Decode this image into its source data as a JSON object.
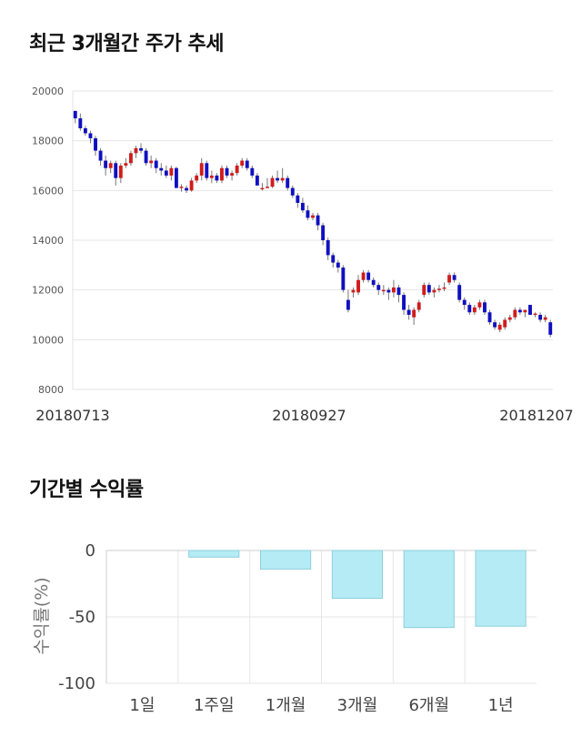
{
  "titles": {
    "price_trend": "최근 3개월간 주가 추세",
    "returns": "기간별 수익률"
  },
  "colors": {
    "up": "#d01c1c",
    "down": "#1010c0",
    "bar_fill": "#b5ebf5",
    "bar_stroke": "#8ccfdd",
    "grid": "#e6e6e6"
  },
  "chart_data": [
    {
      "type": "candlestick",
      "title": "최근 3개월간 주가 추세",
      "ylim": [
        8000,
        20000
      ],
      "yticks": [
        8000,
        10000,
        12000,
        14000,
        16000,
        18000,
        20000
      ],
      "xtick_labels": [
        "20180713",
        "20180927",
        "20181207"
      ],
      "grid": true,
      "ohlc": [
        [
          19200,
          19200,
          18700,
          18900
        ],
        [
          18900,
          19100,
          18400,
          18500
        ],
        [
          18500,
          18600,
          18200,
          18300
        ],
        [
          18300,
          18400,
          17900,
          18100
        ],
        [
          18100,
          18200,
          17400,
          17600
        ],
        [
          17600,
          17700,
          17000,
          17200
        ],
        [
          17200,
          17400,
          16600,
          16900
        ],
        [
          16900,
          17200,
          16700,
          17100
        ],
        [
          17100,
          17200,
          16200,
          16500
        ],
        [
          16500,
          17100,
          16300,
          17000
        ],
        [
          17000,
          17300,
          16900,
          17100
        ],
        [
          17100,
          17600,
          17000,
          17500
        ],
        [
          17500,
          17800,
          17300,
          17700
        ],
        [
          17700,
          17900,
          17500,
          17600
        ],
        [
          17600,
          17700,
          17000,
          17100
        ],
        [
          17100,
          17400,
          16900,
          17200
        ],
        [
          17200,
          17300,
          16700,
          16900
        ],
        [
          16900,
          17100,
          16600,
          16800
        ],
        [
          16800,
          17000,
          16500,
          16600
        ],
        [
          16600,
          17000,
          16400,
          16900
        ],
        [
          16900,
          16950,
          16100,
          16100
        ],
        [
          16100,
          16250,
          15950,
          16150
        ],
        [
          16100,
          16200,
          15900,
          16000
        ],
        [
          16000,
          16500,
          15950,
          16400
        ],
        [
          16400,
          16700,
          16300,
          16600
        ],
        [
          16600,
          17300,
          16400,
          17100
        ],
        [
          17100,
          17200,
          16400,
          16500
        ],
        [
          16500,
          16800,
          16300,
          16600
        ],
        [
          16600,
          16700,
          16300,
          16400
        ],
        [
          16400,
          17000,
          16300,
          16900
        ],
        [
          16900,
          17000,
          16500,
          16600
        ],
        [
          16600,
          16800,
          16400,
          16700
        ],
        [
          16700,
          17100,
          16600,
          17000
        ],
        [
          17000,
          17300,
          16900,
          17200
        ],
        [
          17200,
          17300,
          16800,
          16900
        ],
        [
          16900,
          17000,
          16500,
          16600
        ],
        [
          16600,
          16700,
          16200,
          16200
        ],
        [
          16100,
          16300,
          16000,
          16100
        ],
        [
          16100,
          16500,
          16100,
          16150
        ],
        [
          16150,
          16600,
          16100,
          16500
        ],
        [
          16500,
          16800,
          16300,
          16400
        ],
        [
          16400,
          16900,
          16300,
          16500
        ],
        [
          16500,
          16600,
          16000,
          16100
        ],
        [
          16100,
          16200,
          15700,
          15800
        ],
        [
          15800,
          15900,
          15300,
          15500
        ],
        [
          15500,
          15700,
          15100,
          15200
        ],
        [
          15200,
          15400,
          14800,
          14900
        ],
        [
          14900,
          15100,
          14800,
          15000
        ],
        [
          15000,
          15100,
          14400,
          14600
        ],
        [
          14600,
          14700,
          13800,
          14000
        ],
        [
          14000,
          14100,
          13200,
          13400
        ],
        [
          13400,
          13500,
          12900,
          13100
        ],
        [
          13100,
          13200,
          12700,
          12900
        ],
        [
          12900,
          13000,
          11900,
          12000
        ],
        [
          11600,
          12000,
          11100,
          11200
        ],
        [
          11900,
          12100,
          11700,
          12000
        ],
        [
          11900,
          12600,
          11800,
          12400
        ],
        [
          12400,
          12800,
          12300,
          12700
        ],
        [
          12700,
          12800,
          12300,
          12400
        ],
        [
          12400,
          12500,
          12100,
          12200
        ],
        [
          12200,
          12300,
          11800,
          12000
        ],
        [
          12000,
          12200,
          11800,
          12000
        ],
        [
          12000,
          12100,
          11600,
          11900
        ],
        [
          11900,
          12400,
          11700,
          12100
        ],
        [
          12100,
          12200,
          11500,
          11800
        ],
        [
          11800,
          11900,
          11000,
          11200
        ],
        [
          11200,
          11400,
          10800,
          11000
        ],
        [
          10900,
          11300,
          10600,
          11200
        ],
        [
          11200,
          11600,
          11100,
          11500
        ],
        [
          11800,
          12300,
          11700,
          12200
        ],
        [
          12200,
          12300,
          11800,
          11900
        ],
        [
          11900,
          12100,
          11700,
          12000
        ],
        [
          12000,
          12200,
          11900,
          12050
        ],
        [
          12050,
          12300,
          11950,
          12100
        ],
        [
          12300,
          12700,
          12200,
          12600
        ],
        [
          12600,
          12700,
          12300,
          12400
        ],
        [
          12200,
          12300,
          11500,
          11600
        ],
        [
          11600,
          11700,
          11200,
          11400
        ],
        [
          11400,
          11500,
          11000,
          11100
        ],
        [
          11100,
          11400,
          11000,
          11300
        ],
        [
          11300,
          11600,
          11200,
          11500
        ],
        [
          11500,
          11600,
          11000,
          11100
        ],
        [
          11100,
          11200,
          10600,
          10700
        ],
        [
          10700,
          10800,
          10400,
          10500
        ],
        [
          10400,
          10700,
          10300,
          10600
        ],
        [
          10500,
          10900,
          10400,
          10800
        ],
        [
          10800,
          11000,
          10700,
          10900
        ],
        [
          10900,
          11300,
          10800,
          11200
        ],
        [
          11200,
          11300,
          11000,
          11100
        ],
        [
          11100,
          11200,
          10900,
          11200
        ],
        [
          11400,
          11400,
          11000,
          11000
        ],
        [
          11000,
          11100,
          10900,
          11050
        ],
        [
          11000,
          11100,
          10700,
          10800
        ],
        [
          10800,
          11000,
          10700,
          10900
        ],
        [
          10700,
          10800,
          10100,
          10200
        ]
      ]
    },
    {
      "type": "bar",
      "title": "기간별 수익률",
      "ylabel": "수익률(%)",
      "ylim": [
        -100,
        0
      ],
      "yticks": [
        0,
        -50,
        -100
      ],
      "categories": [
        "1일",
        "1주일",
        "1개월",
        "3개월",
        "6개월",
        "1년"
      ],
      "values": [
        0,
        -5,
        -14,
        -36,
        -58,
        -57
      ]
    }
  ]
}
